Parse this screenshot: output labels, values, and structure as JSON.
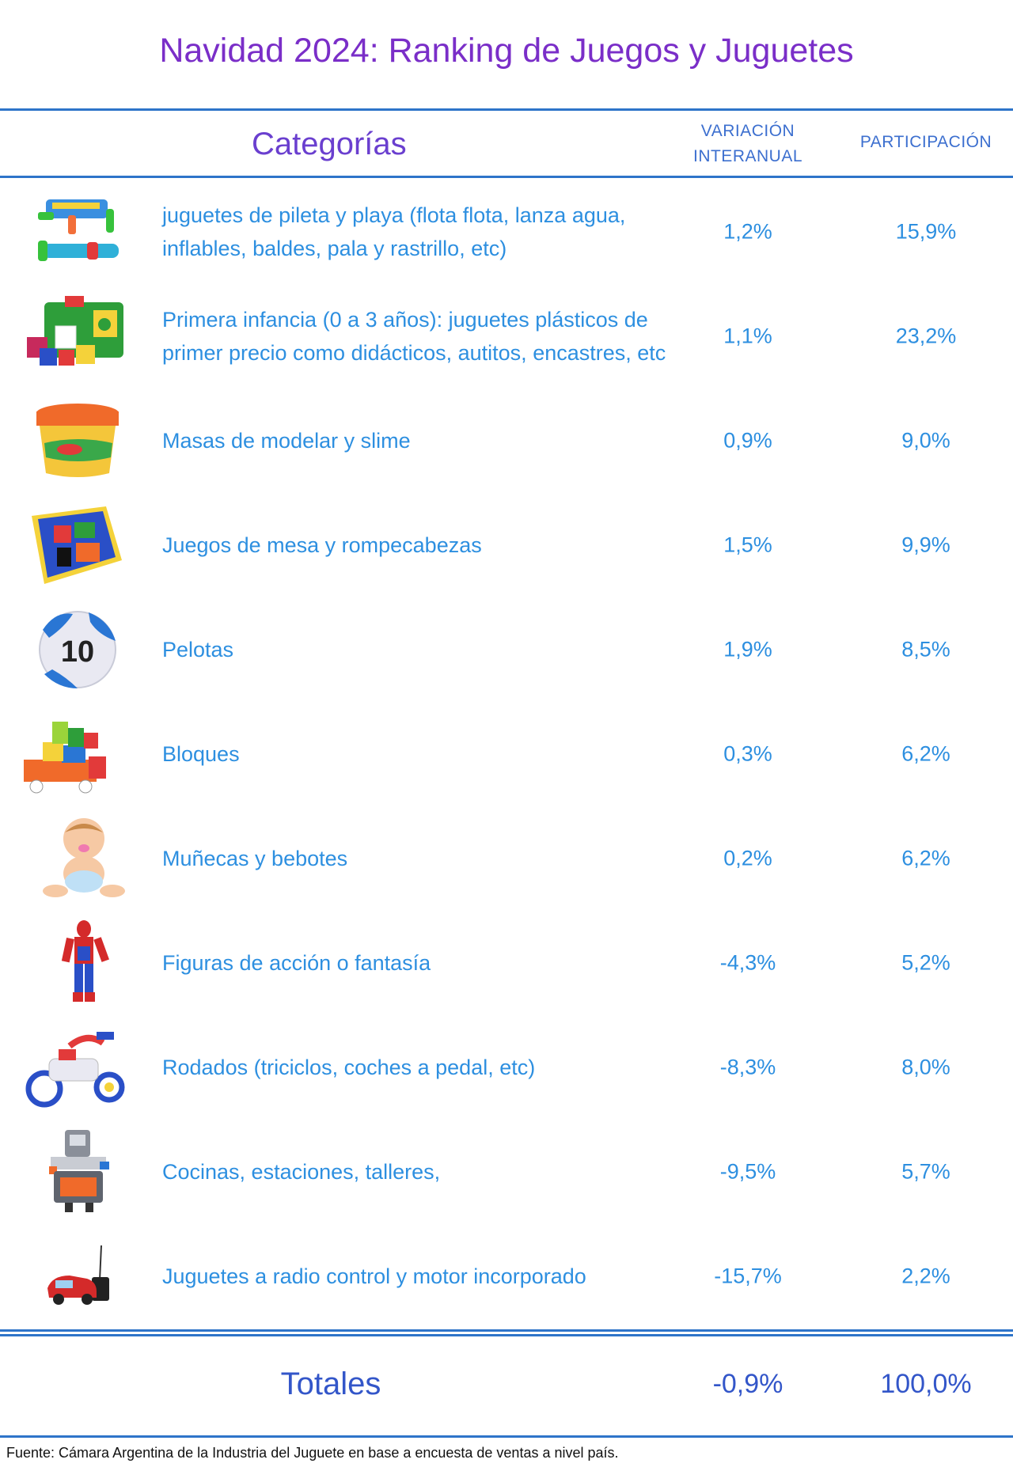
{
  "title": "Navidad 2024: Ranking de Juegos y Juguetes",
  "header": {
    "categorias": "Categorías",
    "variacion_line1": "VARIACIÓN",
    "variacion_line2": "INTERANUAL",
    "participacion": "PARTICIPACIÓN"
  },
  "rows": [
    {
      "category": "juguetes de pileta y playa (flota flota, lanza agua, inflables, baldes, pala y rastrillo, etc)",
      "variacion": "1,2%",
      "participacion": "15,9%",
      "icon": "water-gun-icon"
    },
    {
      "category": "Primera infancia (0 a 3 años): juguetes plásticos de primer precio como didácticos, autitos, encastres, etc",
      "variacion": "1,1%",
      "participacion": "23,2%",
      "icon": "shape-sorter-icon"
    },
    {
      "category": "Masas de modelar y slime",
      "variacion": "0,9%",
      "participacion": "9,0%",
      "icon": "play-dough-icon"
    },
    {
      "category": "Juegos de mesa y rompecabezas",
      "variacion": "1,5%",
      "participacion": "9,9%",
      "icon": "board-game-icon"
    },
    {
      "category": "Pelotas",
      "variacion": "1,9%",
      "participacion": "8,5%",
      "icon": "ball-icon"
    },
    {
      "category": "Bloques",
      "variacion": "0,3%",
      "participacion": "6,2%",
      "icon": "blocks-icon"
    },
    {
      "category": "Muñecas y bebotes",
      "variacion": "0,2%",
      "participacion": "6,2%",
      "icon": "baby-doll-icon"
    },
    {
      "category": "Figuras de acción o fantasía",
      "variacion": "-4,3%",
      "participacion": "5,2%",
      "icon": "action-figure-icon"
    },
    {
      "category": "Rodados (triciclos, coches a pedal, etc)",
      "variacion": "-8,3%",
      "participacion": "8,0%",
      "icon": "tricycle-icon"
    },
    {
      "category": "Cocinas, estaciones, talleres,",
      "variacion": "-9,5%",
      "participacion": "5,7%",
      "icon": "workbench-icon"
    },
    {
      "category": "Juguetes a radio control y motor incorporado",
      "variacion": "-15,7%",
      "participacion": "2,2%",
      "icon": "rc-car-icon"
    }
  ],
  "totals": {
    "label": "Totales",
    "variacion": "-0,9%",
    "participacion": "100,0%"
  },
  "source": "Fuente: Cámara Argentina de la Industria del Juguete en base a encuesta de ventas a nivel país."
}
